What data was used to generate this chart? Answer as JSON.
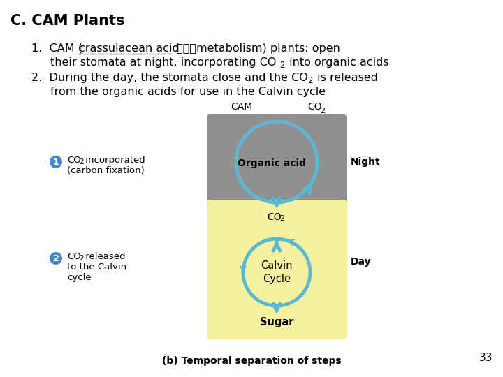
{
  "title": "C. CAM Plants",
  "background_color": "#ffffff",
  "text_color": "#000000",
  "night_box_color": "#909090",
  "day_box_color": "#f5f0a0",
  "circle_color": "#5bb8d4",
  "circle_linewidth": 3.5,
  "badge_color": "#4488cc",
  "footer": "(b) Temporal separation of steps",
  "page_number": "33"
}
